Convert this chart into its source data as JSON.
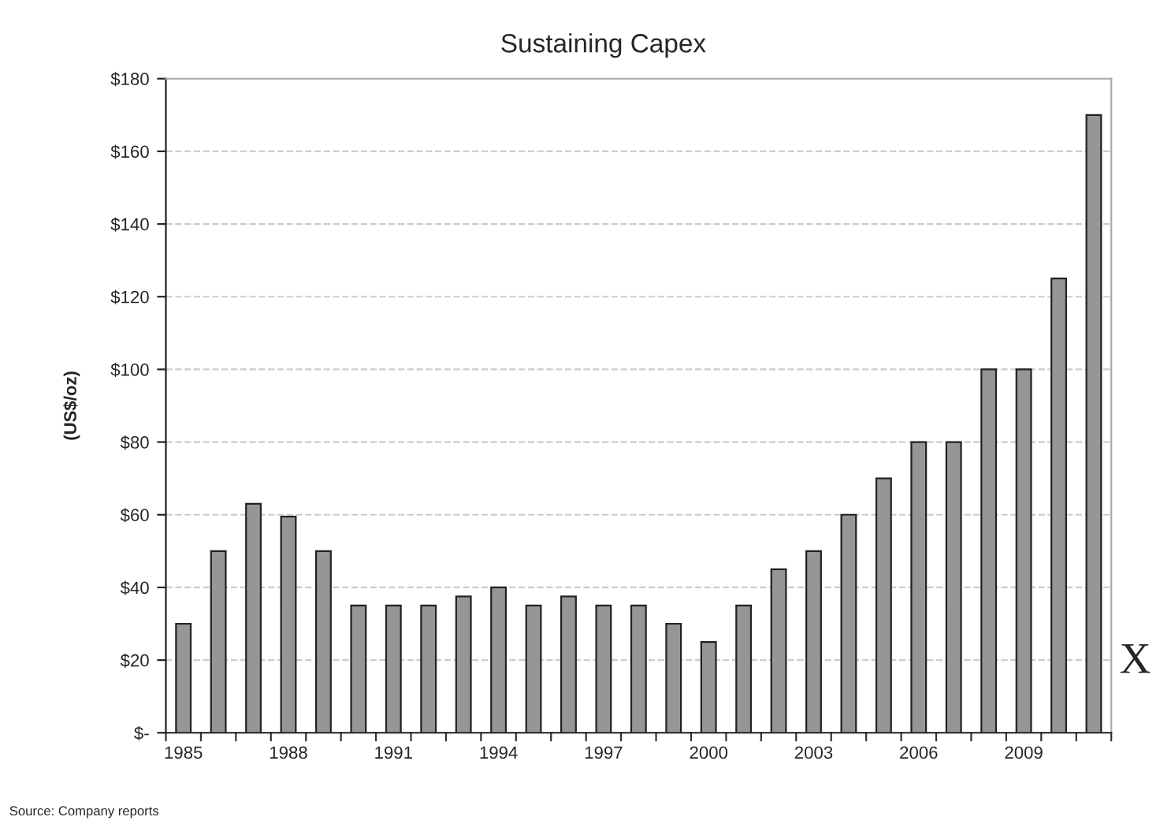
{
  "chart_data": {
    "type": "bar",
    "title": "Sustaining Capex",
    "ylabel": "(US$/oz)",
    "categories": [
      "1985",
      null,
      null,
      "1988",
      null,
      null,
      "1991",
      null,
      null,
      "1994",
      null,
      null,
      "1997",
      null,
      null,
      "2000",
      null,
      null,
      "2003",
      null,
      null,
      "2006",
      null,
      null,
      "2009",
      null,
      null
    ],
    "values": [
      30,
      50,
      63,
      59.5,
      50,
      35,
      35,
      35,
      37.5,
      40,
      35,
      37.5,
      35,
      35,
      30,
      25,
      35,
      45,
      50,
      60,
      70,
      80,
      80,
      100,
      100,
      125,
      170
    ],
    "color": "#969696",
    "ylim": [
      0,
      180
    ],
    "yticks": [
      {
        "value": 0,
        "label": "$-"
      },
      {
        "value": 20,
        "label": "$20"
      },
      {
        "value": 40,
        "label": "$40"
      },
      {
        "value": 60,
        "label": "$60"
      },
      {
        "value": 80,
        "label": "$80"
      },
      {
        "value": 100,
        "label": "$100"
      },
      {
        "value": 120,
        "label": "$120"
      },
      {
        "value": 140,
        "label": "$140"
      },
      {
        "value": 160,
        "label": "$160"
      },
      {
        "value": 180,
        "label": "$180"
      }
    ],
    "grid": "y",
    "annotations": [
      "Source: Company reports",
      "X"
    ]
  }
}
